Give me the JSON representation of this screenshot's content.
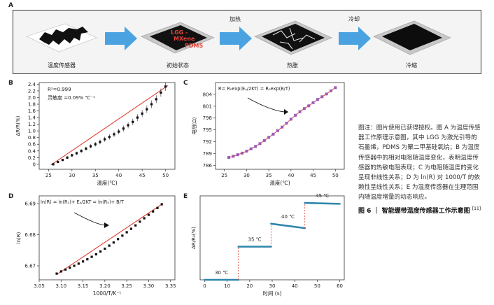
{
  "panel_letters": {
    "A": "A",
    "B": "B",
    "C": "C",
    "D": "D",
    "E": "E"
  },
  "schematic": {
    "stages": [
      "温度传感器",
      "初始状态",
      "热胀",
      "冷缩"
    ],
    "arrow_labels": [
      "",
      "加热",
      "冷却"
    ],
    "stage2_inner": {
      "line1": "LGG -",
      "line2": "MXene",
      "line3": "PDMS"
    }
  },
  "colors": {
    "blue_arrow": "#4aa3e0",
    "fit_red": "#e0443a",
    "purple": "#9b59b6",
    "teal": "#2e86ab",
    "red_dash": "#e04b3a"
  },
  "chart_data": [
    {
      "id": "B",
      "type": "scatter",
      "xlabel": "温度(℃)",
      "ylabel": "ΔR/R(%)",
      "xticks": [
        25,
        30,
        35,
        40,
        45,
        50
      ],
      "yticks": [
        0,
        0.2,
        0.4,
        0.6,
        0.8,
        1.0,
        1.2,
        1.4,
        1.6,
        1.8,
        2.0,
        2.2,
        2.4
      ],
      "xlim": [
        23,
        52
      ],
      "ylim": [
        -0.15,
        2.45
      ],
      "annotations": [
        "R²=0.999",
        "灵敏度 =0.09% ℃⁻¹"
      ],
      "x": [
        26,
        27,
        28,
        29,
        30,
        31,
        32,
        33,
        34,
        35,
        36,
        37,
        38,
        39,
        40,
        41,
        42,
        43,
        44,
        45,
        46,
        47,
        48,
        49,
        50
      ],
      "y": [
        0.0,
        0.07,
        0.13,
        0.2,
        0.27,
        0.33,
        0.4,
        0.47,
        0.54,
        0.6,
        0.67,
        0.75,
        0.82,
        0.9,
        0.98,
        1.07,
        1.17,
        1.27,
        1.4,
        1.52,
        1.65,
        1.8,
        1.95,
        2.15,
        2.33
      ],
      "fit": [
        [
          25.5,
          -0.02
        ],
        [
          50.5,
          2.36
        ]
      ]
    },
    {
      "id": "C",
      "type": "line",
      "xlabel": "温度(℃)",
      "ylabel": "电阻(Ω)",
      "formula": "R= R₀exp(Eₐ/2KT) = R₀exp(B/T)",
      "xticks": [
        25,
        30,
        35,
        40,
        45,
        50
      ],
      "yticks": [
        786,
        789,
        792,
        795,
        798,
        801,
        804
      ],
      "xlim": [
        23,
        52
      ],
      "ylim": [
        785,
        807
      ],
      "x": [
        26,
        27,
        28,
        29,
        30,
        31,
        32,
        33,
        34,
        35,
        36,
        37,
        38,
        39,
        40,
        41,
        42,
        43,
        44,
        45,
        46,
        47,
        48,
        49,
        50
      ],
      "y": [
        788.0,
        788.3,
        788.7,
        789.1,
        789.6,
        790.2,
        790.8,
        791.5,
        792.3,
        793.1,
        793.9,
        794.8,
        795.7,
        796.7,
        797.7,
        798.7,
        799.6,
        800.4,
        801.1,
        801.9,
        802.7,
        803.4,
        804.1,
        804.9,
        805.7
      ]
    },
    {
      "id": "D",
      "type": "scatter",
      "xlabel": "1000/T/K⁻¹",
      "ylabel": "ln(R)",
      "formula": "ln(R) = ln(R₀)+ Eₐ/2KT = ln(R₀)+ B/T",
      "xticks": [
        3.05,
        3.1,
        3.15,
        3.2,
        3.25,
        3.3,
        3.35
      ],
      "yticks": [
        6.67,
        6.68,
        6.69
      ],
      "xtick_labels": [
        "3.05",
        "3.10",
        "3.15",
        "3.20",
        "3.25",
        "3.30",
        "3.35"
      ],
      "xlim": [
        3.05,
        3.36
      ],
      "ylim": [
        6.6655,
        6.6925
      ],
      "x": [
        3.09,
        3.1,
        3.11,
        3.12,
        3.13,
        3.14,
        3.15,
        3.16,
        3.17,
        3.18,
        3.19,
        3.2,
        3.21,
        3.22,
        3.23,
        3.24,
        3.25,
        3.26,
        3.27,
        3.28,
        3.29,
        3.3,
        3.31,
        3.32,
        3.33
      ],
      "y": [
        6.6675,
        6.6682,
        6.6688,
        6.6694,
        6.67,
        6.6707,
        6.6714,
        6.6721,
        6.6729,
        6.6737,
        6.6746,
        6.6755,
        6.6765,
        6.6775,
        6.6786,
        6.6797,
        6.6808,
        6.6819,
        6.683,
        6.6842,
        6.6853,
        6.6864,
        6.6875,
        6.6886,
        6.6898
      ],
      "fit": [
        [
          3.09,
          6.6672
        ],
        [
          3.33,
          6.6898
        ]
      ]
    },
    {
      "id": "E",
      "type": "line",
      "xlabel": "时间 (s)",
      "ylabel": "ΔR/R₀(%)",
      "xticks": [
        0,
        10,
        20,
        30,
        40,
        50,
        60
      ],
      "xlim": [
        -2,
        62
      ],
      "ylim": [
        0,
        1.9
      ],
      "steps": [
        {
          "label": "30 ℃",
          "t0": 0,
          "t1": 15,
          "v0": 0.0,
          "v1": 0.0
        },
        {
          "label": "35 ℃",
          "t0": 15,
          "t1": 29.5,
          "v0": 0.75,
          "v1": 0.75
        },
        {
          "label": "40 ℃",
          "t0": 29.5,
          "t1": 44.5,
          "v0": 1.27,
          "v1": 1.17
        },
        {
          "label": "45 ℃",
          "t0": 44.5,
          "t1": 60,
          "v0": 1.74,
          "v1": 1.72
        }
      ]
    }
  ],
  "caption": {
    "body": "图注：图片使用已获得授权。图 A 为温度传感器工作原理示意图，其中 LGG 为激光引导的石墨烯，PDMS 为聚二甲基硅氧烷；B 为温度传感器中的相对电阻随温度变化，表明温度传感器的热敏电阻表现；C 为电阻随温度的变化呈现非线性关系；D 为 ln(R) 对 1000/T 的依赖性呈线性关系；E 为温度传感器在生理范围内随温度增量的动态响应。",
    "title": "图 6 ｜ 智能绷带温度传感器工作示意图",
    "ref": "[11]"
  }
}
